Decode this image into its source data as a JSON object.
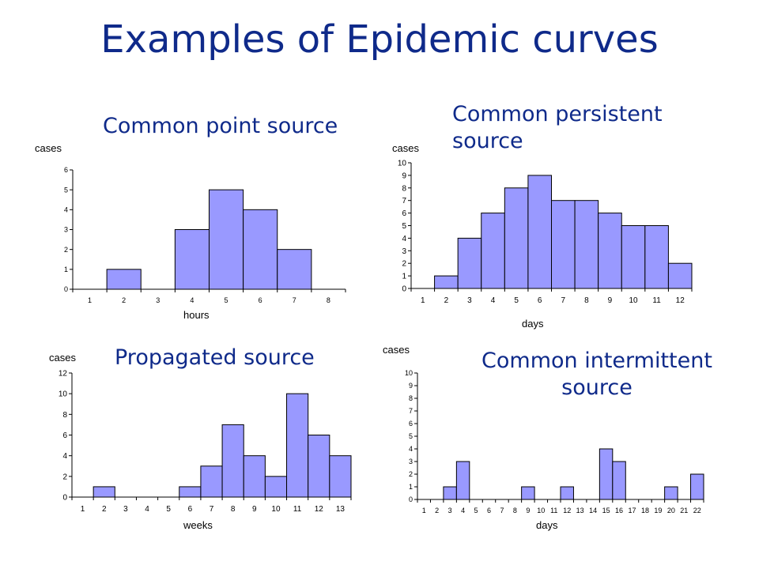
{
  "slide": {
    "title": "Examples of Epidemic curves"
  },
  "colors": {
    "title": "#0f2a8a",
    "bar_fill": "#9999ff",
    "bar_stroke": "#000000"
  },
  "chart_data": [
    {
      "type": "bar",
      "title": "Common point source",
      "ylabel": "cases",
      "xlabel": "hours",
      "ylim": [
        0,
        6
      ],
      "yticks": [
        0,
        1,
        2,
        3,
        4,
        5,
        6
      ],
      "categories": [
        "1",
        "2",
        "3",
        "4",
        "5",
        "6",
        "7",
        "8"
      ],
      "values": [
        0,
        1,
        0,
        3,
        5,
        4,
        2,
        0
      ],
      "grid": false
    },
    {
      "type": "bar",
      "title": "Common persistent source",
      "ylabel": "cases",
      "xlabel": "days",
      "ylim": [
        0,
        10
      ],
      "yticks": [
        0,
        1,
        2,
        3,
        4,
        5,
        6,
        7,
        8,
        9,
        10
      ],
      "categories": [
        "1",
        "2",
        "3",
        "4",
        "5",
        "6",
        "7",
        "8",
        "9",
        "10",
        "11",
        "12"
      ],
      "values": [
        0,
        1,
        4,
        6,
        8,
        9,
        7,
        7,
        6,
        5,
        5,
        2
      ],
      "grid": false
    },
    {
      "type": "bar",
      "title": "Propagated source",
      "ylabel": "cases",
      "xlabel": "weeks",
      "ylim": [
        0,
        12
      ],
      "yticks": [
        0,
        2,
        4,
        6,
        8,
        10,
        12
      ],
      "categories": [
        "1",
        "2",
        "3",
        "4",
        "5",
        "6",
        "7",
        "8",
        "9",
        "10",
        "11",
        "12",
        "13"
      ],
      "values": [
        0,
        1,
        0,
        0,
        0,
        1,
        3,
        7,
        4,
        2,
        10,
        6,
        4
      ],
      "grid": false
    },
    {
      "type": "bar",
      "title": "Common intermittent source",
      "ylabel": "cases",
      "xlabel": "days",
      "ylim": [
        0,
        10
      ],
      "yticks": [
        0,
        1,
        2,
        3,
        4,
        5,
        6,
        7,
        8,
        9,
        10
      ],
      "categories": [
        "1",
        "2",
        "3",
        "4",
        "5",
        "6",
        "7",
        "8",
        "9",
        "10",
        "11",
        "12",
        "13",
        "14",
        "15",
        "16",
        "17",
        "18",
        "19",
        "20",
        "21",
        "22"
      ],
      "values": [
        0,
        0,
        1,
        3,
        0,
        0,
        0,
        0,
        1,
        0,
        0,
        1,
        0,
        0,
        4,
        3,
        0,
        0,
        0,
        1,
        0,
        2
      ],
      "grid": false
    }
  ]
}
